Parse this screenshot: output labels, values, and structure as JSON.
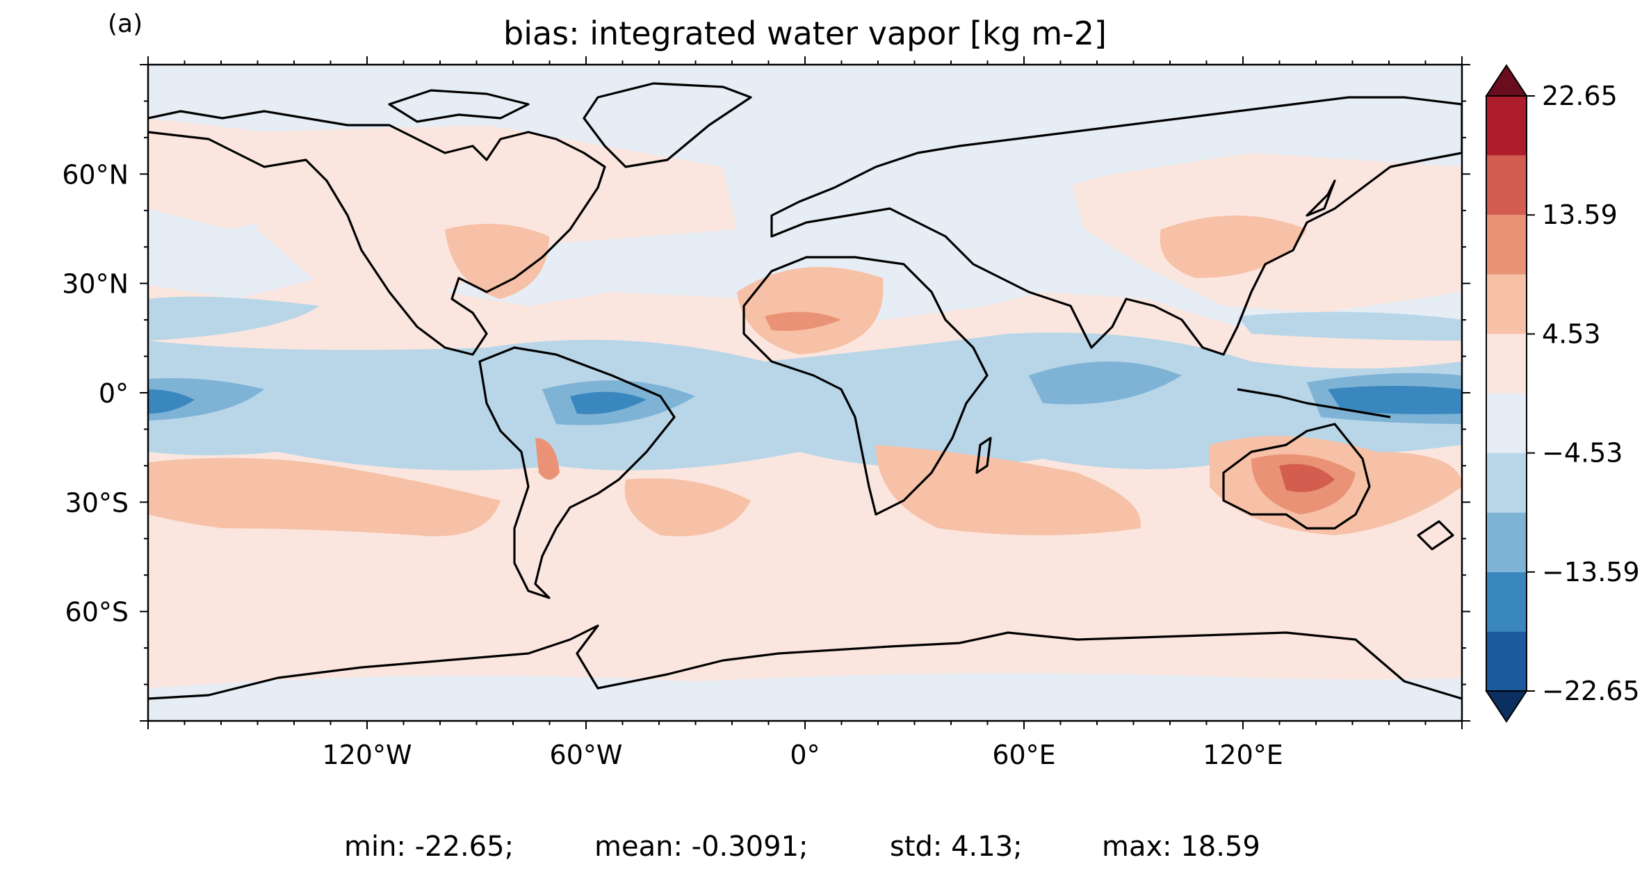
{
  "panel_label": "(a)",
  "title": "bias: integrated water vapor [kg m-2]",
  "map": {
    "projection": "PlateCarree",
    "lon_range": [
      -180,
      180
    ],
    "lat_range": [
      -90,
      90
    ],
    "lon_ticks": [
      {
        "value": -120,
        "label": "120°W"
      },
      {
        "value": -60,
        "label": "60°W"
      },
      {
        "value": 0,
        "label": "0°"
      },
      {
        "value": 60,
        "label": "60°E"
      },
      {
        "value": 120,
        "label": "120°E"
      }
    ],
    "lat_ticks": [
      {
        "value": 60,
        "label": "60°N"
      },
      {
        "value": 30,
        "label": "30°N"
      },
      {
        "value": 0,
        "label": "0°"
      },
      {
        "value": -30,
        "label": "30°S"
      },
      {
        "value": -60,
        "label": "60°S"
      }
    ],
    "coastlines": true,
    "colormap": "RdBu_r"
  },
  "colorbar": {
    "levels": [
      -22.65,
      -18.12,
      -13.59,
      -9.06,
      -4.53,
      0,
      4.53,
      9.06,
      13.59,
      18.12,
      22.65
    ],
    "tick_labels": [
      "22.65",
      "13.59",
      "4.53",
      "−4.53",
      "−13.59",
      "−22.65"
    ],
    "tick_values": [
      22.65,
      13.59,
      4.53,
      -4.53,
      -13.59,
      -22.65
    ],
    "extend": "both",
    "colors": [
      "#1b5a9c",
      "#3a87c0",
      "#7eb3d6",
      "#b9d6e8",
      "#e6edf5",
      "#fbe6df",
      "#f6c1a6",
      "#ea9276",
      "#d35d4e",
      "#ae1d2c"
    ],
    "under_color": "#0b3060",
    "over_color": "#6a0d1f"
  },
  "stats": {
    "min": "min: -22.65;",
    "mean": "mean: -0.3091;",
    "std": "std: 4.13;",
    "max": "max: 18.59"
  }
}
